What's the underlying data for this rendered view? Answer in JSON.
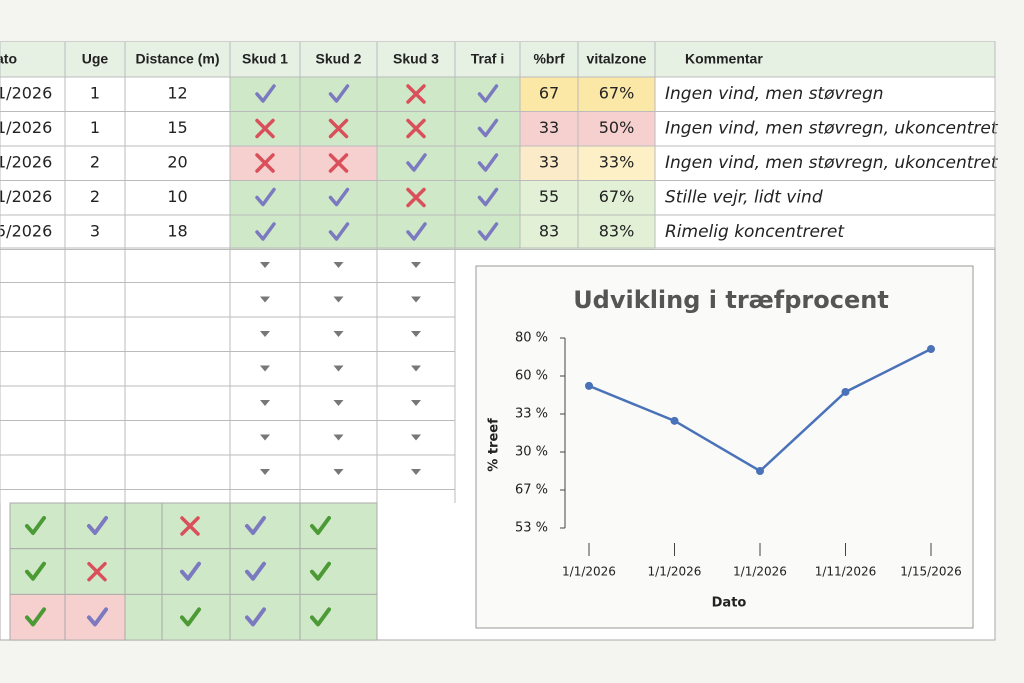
{
  "table": {
    "headers": [
      "ato",
      "Uge",
      "Distance (m)",
      "Skud 1",
      "Skud 2",
      "Skud 3",
      "Traf i",
      "%brf",
      "vitalzone",
      "Kommentar"
    ],
    "rows": [
      [
        "1/2026",
        1,
        12,
        true,
        true,
        false,
        true,
        67,
        "67%",
        "Ingen vind, men støvregn"
      ],
      [
        "1/2026",
        1,
        15,
        false,
        false,
        false,
        true,
        33,
        "50%",
        "Ingen vind, men støvregn, ukoncentret"
      ],
      [
        "1/2026",
        2,
        20,
        false,
        false,
        true,
        true,
        33,
        "33%",
        "Ingen vind, men støvregn, ukoncentret"
      ],
      [
        "1/2026",
        2,
        10,
        true,
        true,
        false,
        true,
        55,
        "67%",
        "Stille vejr, lidt vind"
      ],
      [
        "5/2026",
        3,
        18,
        true,
        true,
        true,
        true,
        83,
        "83%",
        "Rimelig koncentreret"
      ]
    ]
  },
  "summary_grid": [
    [
      true,
      true,
      false,
      true,
      true,
      null
    ],
    [
      true,
      false,
      true,
      true,
      true,
      null
    ],
    [
      true,
      true,
      true,
      true,
      true,
      null
    ]
  ],
  "chart_data": {
    "type": "line",
    "title": "Udvikling i træfprocent",
    "ylabel": "% treef",
    "xlabel": "Dato",
    "categories": [
      "1/1/2026",
      "1/1/2026",
      "1/1/2026",
      "1/11/2026",
      "1/15/2026"
    ],
    "values": [
      3.74,
      2.82,
      1.5,
      3.58,
      4.71
    ],
    "color": "#4a72b8",
    "ylim": [
      0,
      5
    ],
    "yticks": [
      {
        "value": 0,
        "label": "53 %"
      },
      {
        "value": 1,
        "label": "67 %"
      },
      {
        "value": 2,
        "label": "30 %"
      },
      {
        "value": 3,
        "label": "33 %"
      },
      {
        "value": 4,
        "label": "60 %"
      },
      {
        "value": 5,
        "label": "80 %"
      }
    ]
  }
}
